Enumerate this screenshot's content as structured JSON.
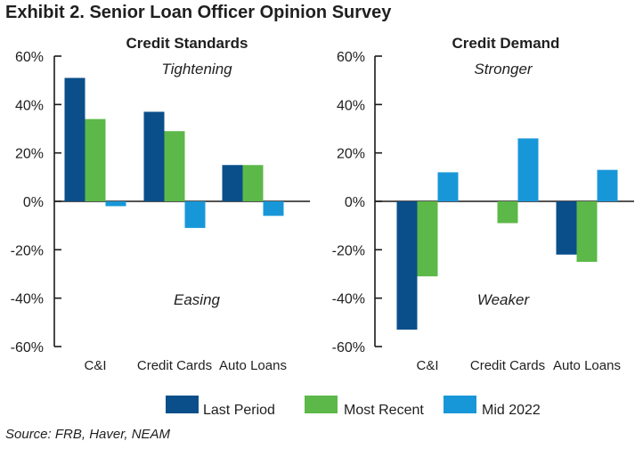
{
  "exhibit_title": "Exhibit 2. Senior Loan Officer Opinion Survey",
  "source": "Source: FRB, Haver, NEAM",
  "colors": {
    "Last Period": "#0a4f8a",
    "Most Recent": "#5cb848",
    "Mid 2022": "#1897d8"
  },
  "chart_data": [
    {
      "type": "bar",
      "title": "Credit Standards",
      "categories": [
        "C&I",
        "Credit Cards",
        "Auto Loans"
      ],
      "yticks": [
        "60%",
        "40%",
        "20%",
        "0%",
        "-20%",
        "-40%",
        "-60%"
      ],
      "ylim": [
        -60,
        60
      ],
      "annotations": {
        "top": "Tightening",
        "bottom": "Easing"
      },
      "series": [
        {
          "name": "Last Period",
          "values": [
            51,
            37,
            15
          ]
        },
        {
          "name": "Most Recent",
          "values": [
            34,
            29,
            15
          ]
        },
        {
          "name": "Mid 2022",
          "values": [
            -2,
            -11,
            -6
          ]
        }
      ]
    },
    {
      "type": "bar",
      "title": "Credit Demand",
      "categories": [
        "C&I",
        "Credit Cards",
        "Auto Loans"
      ],
      "yticks": [
        "60%",
        "40%",
        "20%",
        "0%",
        "-20%",
        "-40%",
        "-60%"
      ],
      "ylim": [
        -60,
        60
      ],
      "annotations": {
        "top": "Stronger",
        "bottom": "Weaker"
      },
      "series": [
        {
          "name": "Last Period",
          "values": [
            -53,
            0,
            -22
          ]
        },
        {
          "name": "Most Recent",
          "values": [
            -31,
            -9,
            -25
          ]
        },
        {
          "name": "Mid 2022",
          "values": [
            12,
            26,
            13
          ]
        }
      ]
    }
  ],
  "legend": [
    "Last Period",
    "Most Recent",
    "Mid 2022"
  ]
}
